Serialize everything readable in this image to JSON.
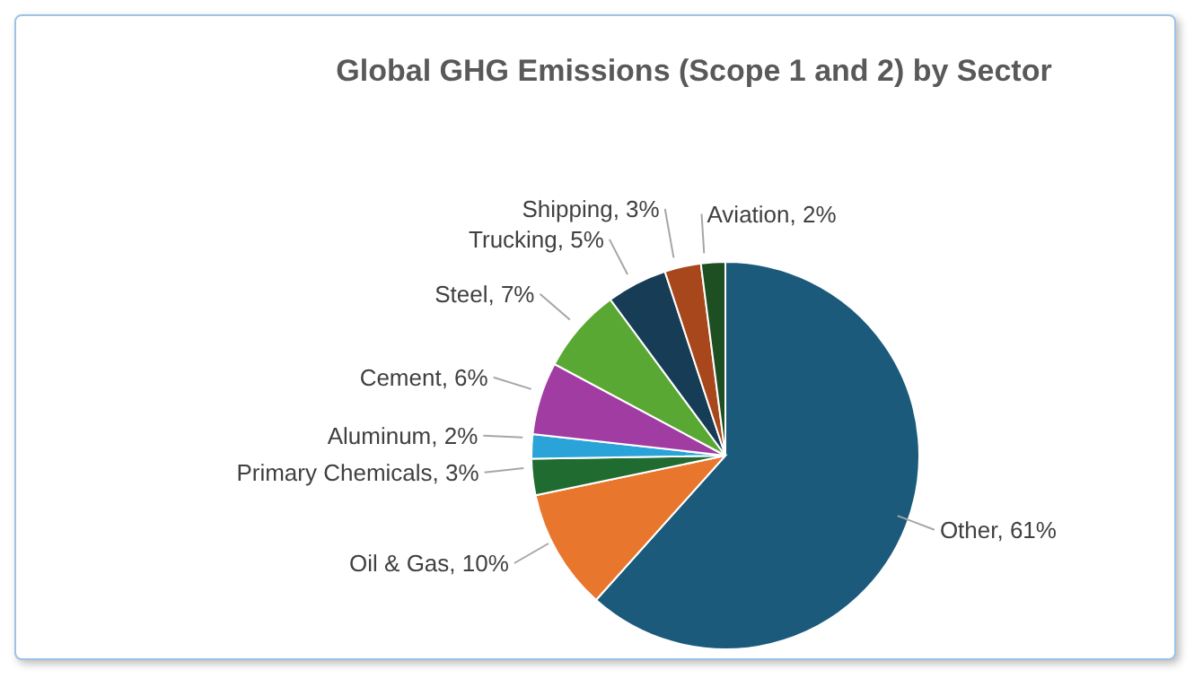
{
  "chart_data": {
    "type": "pie",
    "title": "Global GHG Emissions (Scope 1 and 2) by Sector",
    "categories": [
      "Other",
      "Oil & Gas",
      "Primary Chemicals",
      "Aluminum",
      "Cement",
      "Steel",
      "Trucking",
      "Shipping",
      "Aviation"
    ],
    "values": [
      61,
      10,
      3,
      2,
      6,
      7,
      5,
      3,
      2
    ],
    "value_labels": [
      "61%",
      "10%",
      "3%",
      "2%",
      "6%",
      "7%",
      "5%",
      "3%",
      "2%"
    ],
    "colors": [
      "#1b5a7a",
      "#e8762d",
      "#1f6b30",
      "#2aa3d8",
      "#a13ca3",
      "#5aa834",
      "#173c55",
      "#a9471c",
      "#1d4f22"
    ],
    "legend": false
  }
}
